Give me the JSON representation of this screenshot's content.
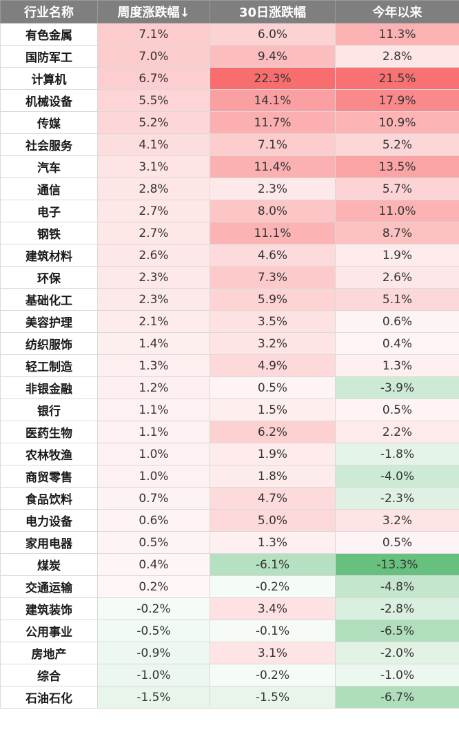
{
  "chart_data": {
    "type": "table",
    "columns": [
      "行业名称",
      "周度涨跌幅↓",
      "30日涨跌幅",
      "今年以来"
    ],
    "rows": [
      {
        "name": "有色金属",
        "week": 7.1,
        "d30": 6.0,
        "ytd": 11.3
      },
      {
        "name": "国防军工",
        "week": 7.0,
        "d30": 9.4,
        "ytd": 2.8
      },
      {
        "name": "计算机",
        "week": 6.7,
        "d30": 22.3,
        "ytd": 21.5
      },
      {
        "name": "机械设备",
        "week": 5.5,
        "d30": 14.1,
        "ytd": 17.9
      },
      {
        "name": "传媒",
        "week": 5.2,
        "d30": 11.7,
        "ytd": 10.9
      },
      {
        "name": "社会服务",
        "week": 4.1,
        "d30": 7.1,
        "ytd": 5.2
      },
      {
        "name": "汽车",
        "week": 3.1,
        "d30": 11.4,
        "ytd": 13.5
      },
      {
        "name": "通信",
        "week": 2.8,
        "d30": 2.3,
        "ytd": 5.7
      },
      {
        "name": "电子",
        "week": 2.7,
        "d30": 8.0,
        "ytd": 11.0
      },
      {
        "name": "钢铁",
        "week": 2.7,
        "d30": 11.1,
        "ytd": 8.7
      },
      {
        "name": "建筑材料",
        "week": 2.6,
        "d30": 4.6,
        "ytd": 1.9
      },
      {
        "name": "环保",
        "week": 2.3,
        "d30": 7.3,
        "ytd": 2.6
      },
      {
        "name": "基础化工",
        "week": 2.3,
        "d30": 5.9,
        "ytd": 5.1
      },
      {
        "name": "美容护理",
        "week": 2.1,
        "d30": 3.5,
        "ytd": 0.6
      },
      {
        "name": "纺织服饰",
        "week": 1.4,
        "d30": 3.2,
        "ytd": 0.4
      },
      {
        "name": "轻工制造",
        "week": 1.3,
        "d30": 4.9,
        "ytd": 1.3
      },
      {
        "name": "非银金融",
        "week": 1.2,
        "d30": 0.5,
        "ytd": -3.9
      },
      {
        "name": "银行",
        "week": 1.1,
        "d30": 1.5,
        "ytd": 0.5
      },
      {
        "name": "医药生物",
        "week": 1.1,
        "d30": 6.2,
        "ytd": 2.2
      },
      {
        "name": "农林牧渔",
        "week": 1.0,
        "d30": 1.9,
        "ytd": -1.8
      },
      {
        "name": "商贸零售",
        "week": 1.0,
        "d30": 1.8,
        "ytd": -4.0
      },
      {
        "name": "食品饮料",
        "week": 0.7,
        "d30": 4.7,
        "ytd": -2.3
      },
      {
        "name": "电力设备",
        "week": 0.6,
        "d30": 5.0,
        "ytd": 3.2
      },
      {
        "name": "家用电器",
        "week": 0.5,
        "d30": 1.3,
        "ytd": 0.5
      },
      {
        "name": "煤炭",
        "week": 0.4,
        "d30": -6.1,
        "ytd": -13.3
      },
      {
        "name": "交通运输",
        "week": 0.2,
        "d30": -0.2,
        "ytd": -4.8
      },
      {
        "name": "建筑装饰",
        "week": -0.2,
        "d30": 3.4,
        "ytd": -2.8
      },
      {
        "name": "公用事业",
        "week": -0.5,
        "d30": -0.1,
        "ytd": -6.5
      },
      {
        "name": "房地产",
        "week": -0.9,
        "d30": 3.1,
        "ytd": -2.0
      },
      {
        "name": "综合",
        "week": -1.0,
        "d30": -0.2,
        "ytd": -1.0
      },
      {
        "name": "石油石化",
        "week": -1.5,
        "d30": -1.5,
        "ytd": -6.7
      }
    ],
    "value_suffix": "%",
    "colors": {
      "positive_max": "#f8696b",
      "negative_max": "#63be7b",
      "neutral": "#ffffff",
      "header_bg": "#7f7f7f",
      "header_text": "#ffffff"
    }
  }
}
